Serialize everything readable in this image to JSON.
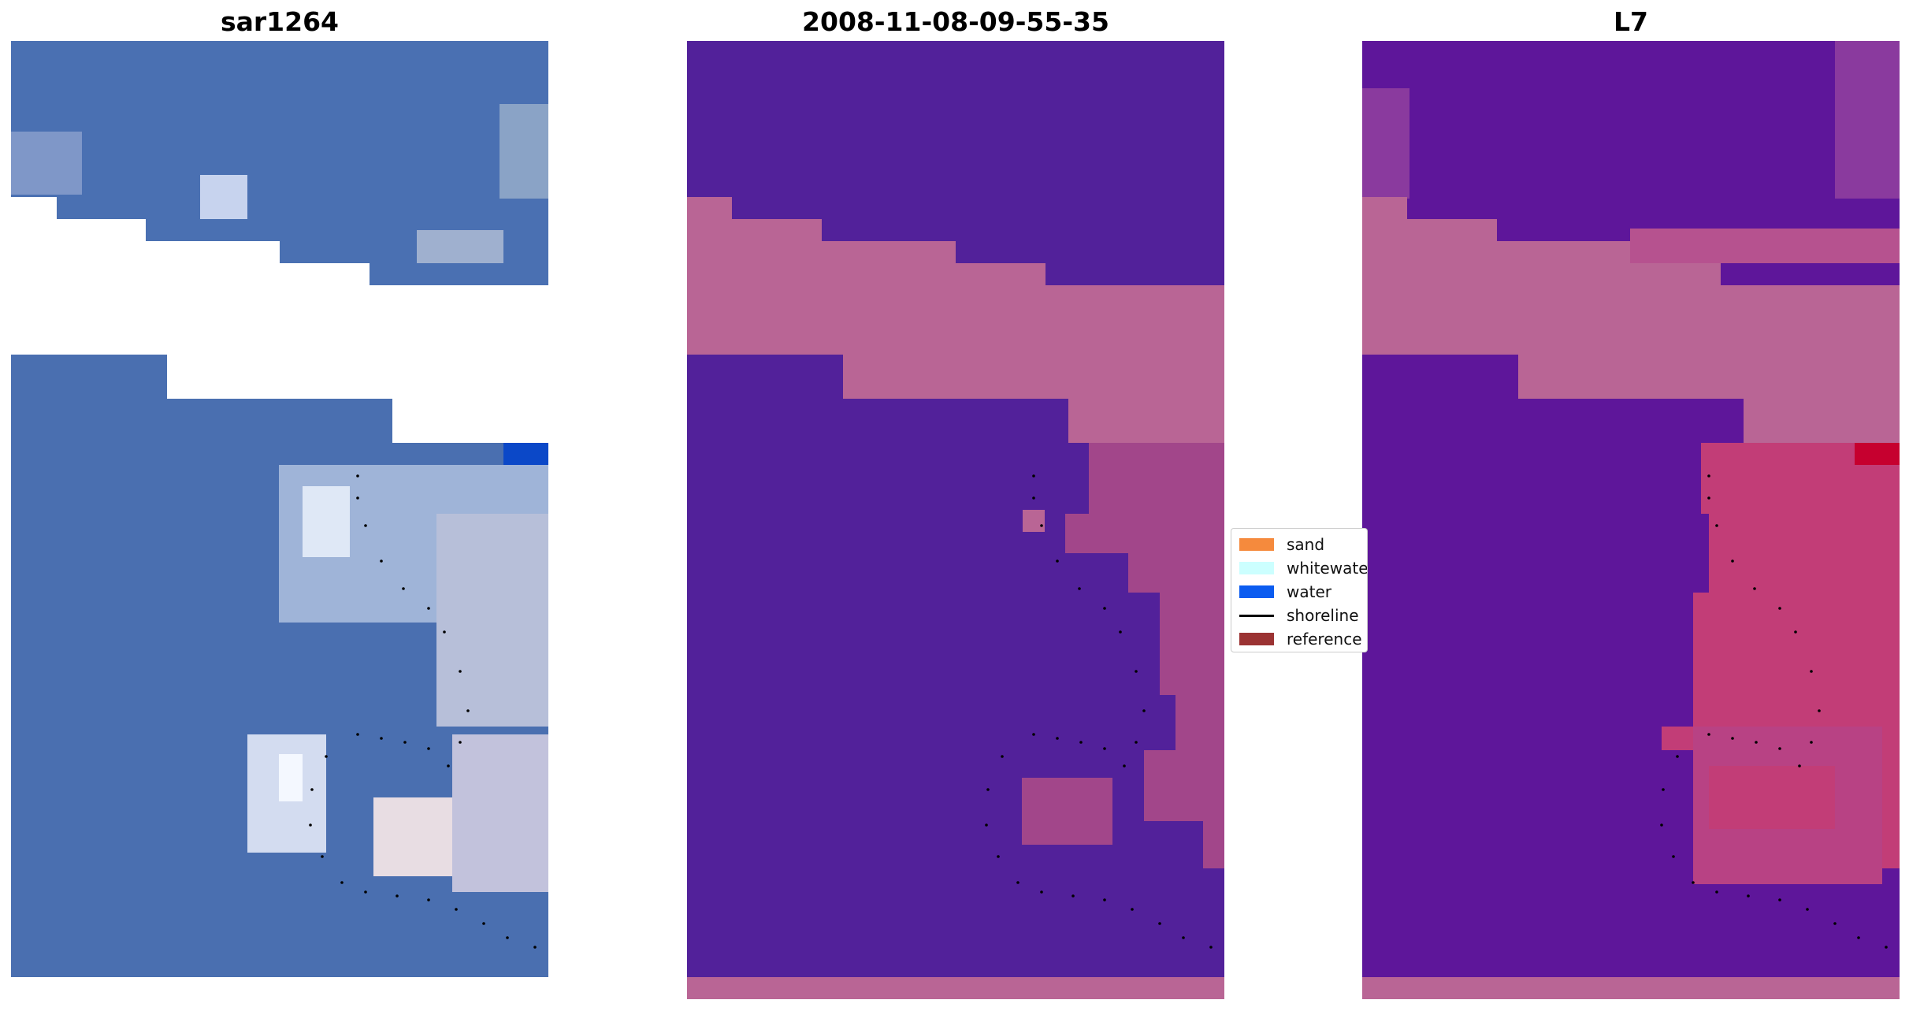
{
  "panels": [
    {
      "title": "sar1264"
    },
    {
      "title": "2008-11-08-09-55-35"
    },
    {
      "title": "L7"
    }
  ],
  "legend": {
    "items": [
      {
        "label": "sand",
        "color": "#f58a3d",
        "kind": "patch"
      },
      {
        "label": "whitewater",
        "color": "#ccffff",
        "kind": "patch"
      },
      {
        "label": "water",
        "color": "#0b5cf0",
        "kind": "patch"
      },
      {
        "label": "shoreline",
        "color": "#000000",
        "kind": "line"
      },
      {
        "label": "reference",
        "color": "#9b3333",
        "kind": "patch"
      }
    ]
  },
  "colors": {
    "classified_water": "#52219a",
    "classified_sand": "#b96595",
    "rgb_base": "#4a6fb0",
    "l7_base": "#5e169a",
    "l7_land": "#b96595"
  }
}
